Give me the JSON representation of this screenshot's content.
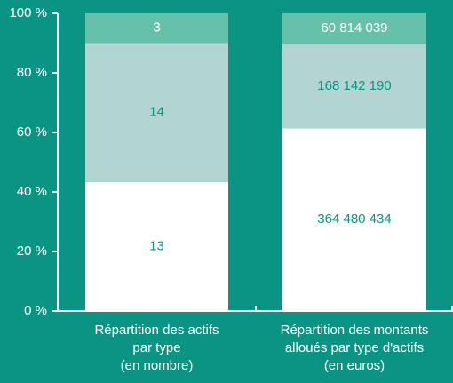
{
  "chart_data": {
    "type": "bar",
    "stacking": "percent",
    "background": "#0a9484",
    "axis_color": "#ffffff",
    "categories": [
      [
        "Répartition des actifs",
        "par type",
        "(en nombre)"
      ],
      [
        "Répartition des montants",
        "alloués par type d'actifs",
        "(en euros)"
      ]
    ],
    "series": [
      {
        "color": "#ffffff",
        "label_color": "#0a9484",
        "values": [
          13,
          364480434
        ],
        "value_labels": [
          "13",
          "364 480 434"
        ]
      },
      {
        "color": "#b3d5d2",
        "label_color": "#0a9484",
        "values": [
          14,
          168142190
        ],
        "value_labels": [
          "14",
          "168 142 190"
        ]
      },
      {
        "color": "#66c1ab",
        "label_color": "#ffffff",
        "values": [
          3,
          60814039
        ],
        "value_labels": [
          "3",
          "60 814 039"
        ]
      }
    ],
    "ylim": [
      0,
      100
    ],
    "yticks": [
      {
        "value": 0,
        "label": "0 %"
      },
      {
        "value": 20,
        "label": "20 %"
      },
      {
        "value": 40,
        "label": "40 %"
      },
      {
        "value": 60,
        "label": "60 %"
      },
      {
        "value": 80,
        "label": "80 %"
      },
      {
        "value": 100,
        "label": "100 %"
      }
    ]
  }
}
